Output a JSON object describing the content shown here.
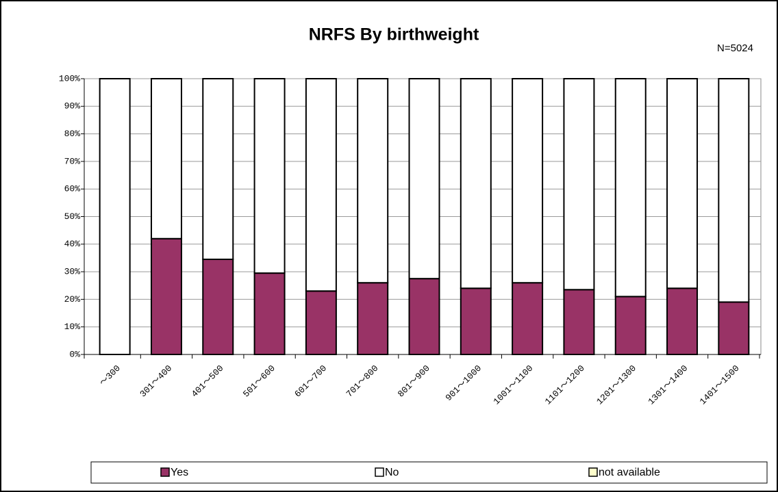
{
  "chart_data": {
    "type": "stacked_bar",
    "title": "NRFS By birthweight",
    "annotation": "N=5024",
    "categories": [
      "～300",
      "301～400",
      "401～500",
      "501～600",
      "601～700",
      "701～800",
      "801～900",
      "901～1000",
      "1001～1100",
      "1101～1200",
      "1201～1300",
      "1301～1400",
      "1401～1500"
    ],
    "series": [
      {
        "name": "Yes",
        "color": "#993366",
        "values": [
          0,
          42,
          34.5,
          29.5,
          23,
          26,
          27.5,
          24,
          26,
          23.5,
          21,
          24,
          19
        ]
      },
      {
        "name": "No",
        "color": "#ffffff",
        "values": [
          100,
          58,
          65.5,
          70.5,
          77,
          74,
          72.5,
          76,
          74,
          76.5,
          79,
          76,
          81
        ]
      },
      {
        "name": "not available",
        "color": "#ffffcc",
        "values": [
          0,
          0,
          0,
          0,
          0,
          0,
          0,
          0,
          0,
          0,
          0,
          0,
          0
        ]
      }
    ],
    "ylim": [
      0,
      100
    ],
    "yticks": [
      {
        "value": 0,
        "label": "0%"
      },
      {
        "value": 10,
        "label": "10%"
      },
      {
        "value": 20,
        "label": "20%"
      },
      {
        "value": 30,
        "label": "30%"
      },
      {
        "value": 40,
        "label": "40%"
      },
      {
        "value": 50,
        "label": "50%"
      },
      {
        "value": 60,
        "label": "60%"
      },
      {
        "value": 70,
        "label": "70%"
      },
      {
        "value": 80,
        "label": "80%"
      },
      {
        "value": 90,
        "label": "90%"
      },
      {
        "value": 100,
        "label": "100%"
      }
    ],
    "grid": true,
    "legend": "bottom"
  }
}
